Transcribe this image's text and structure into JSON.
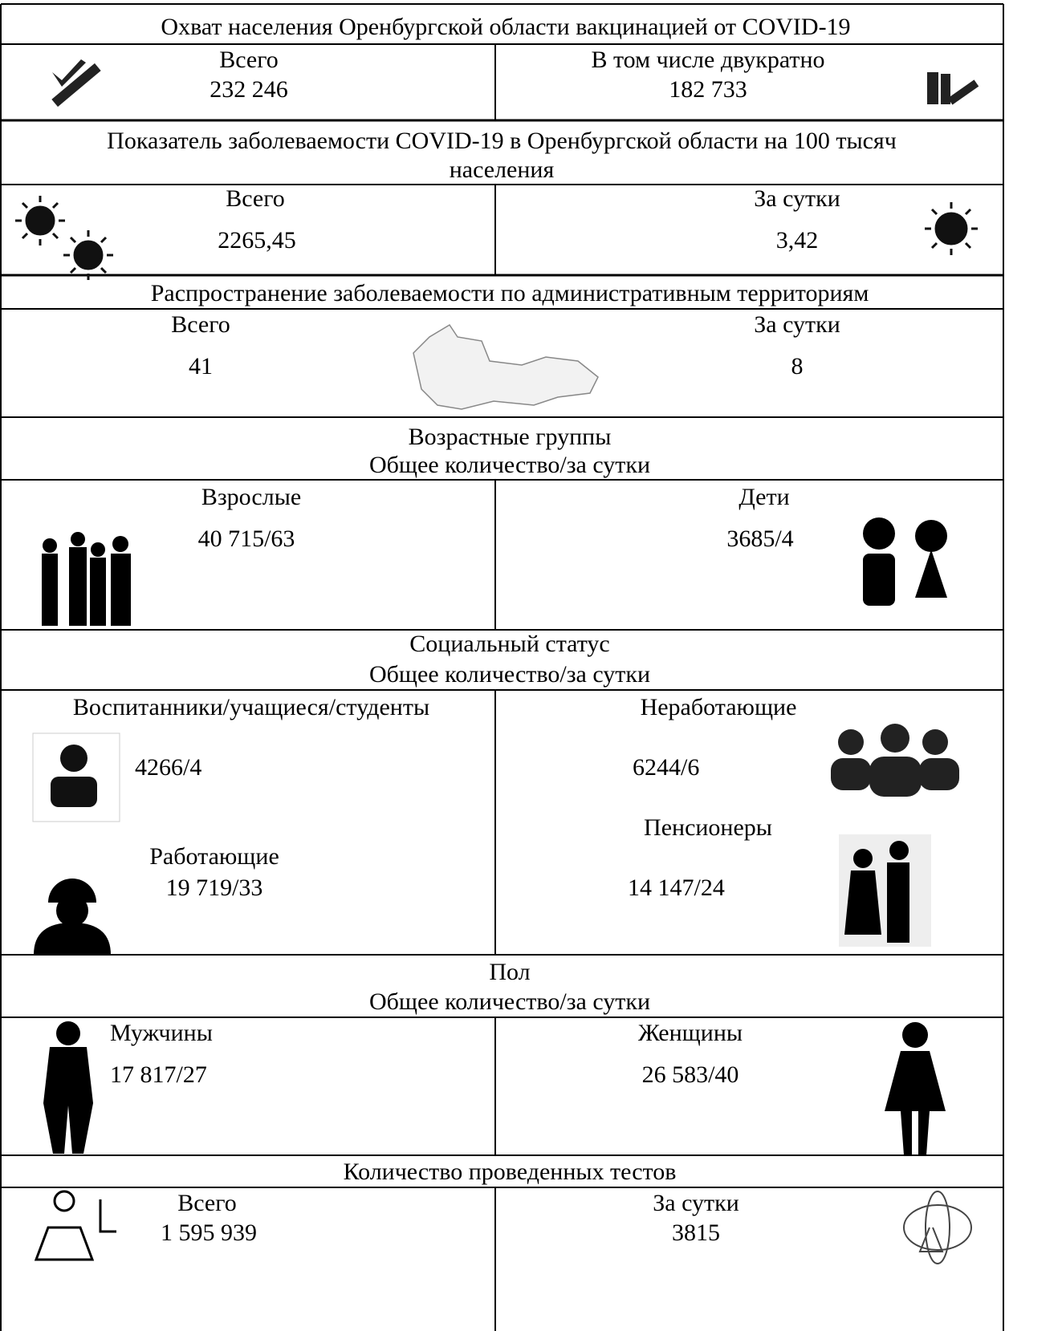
{
  "sections": [
    {
      "title": "Охват населения Оренбургской области вакцинацией от COVID-19",
      "cells": [
        {
          "label": "Всего",
          "value": "232 246"
        },
        {
          "label": "В том числе двукратно",
          "value": "182 733"
        }
      ]
    },
    {
      "title": "Показатель заболеваемости COVID-19 в Оренбургской области на 100 тысяч населения",
      "cells": [
        {
          "label": "Всего",
          "value": "2265,45"
        },
        {
          "label": "За сутки",
          "value": "3,42"
        }
      ]
    },
    {
      "title": "Распространение заболеваемости по административным территориям",
      "cells": [
        {
          "label": "Всего",
          "value": "41"
        },
        {
          "label": "За сутки",
          "value": "8"
        }
      ]
    },
    {
      "title": "Возрастные группы",
      "subtitle": "Общее количество/за сутки",
      "cells": [
        {
          "label": "Взрослые",
          "value": "40 715/63"
        },
        {
          "label": "Дети",
          "value": "3685/4"
        }
      ]
    },
    {
      "title": "Социальный статус",
      "subtitle": "Общее количество/за сутки",
      "cells": [
        {
          "label": "Воспитанники/учащиеся/студенты",
          "value": "4266/4"
        },
        {
          "label": "Работающие",
          "value": "19 719/33"
        },
        {
          "label": "Неработающие",
          "value": "6244/6"
        },
        {
          "label": "Пенсионеры",
          "value": "14 147/24"
        }
      ]
    },
    {
      "title": "Пол",
      "subtitle": "Общее количество/за сутки",
      "cells": [
        {
          "label": "Мужчины",
          "value": "17 817/27"
        },
        {
          "label": "Женщины",
          "value": "26 583/40"
        }
      ]
    },
    {
      "title": "Количество проведенных тестов",
      "cells": [
        {
          "label": "Всего",
          "value": "1 595 939"
        },
        {
          "label": "За сутки",
          "value": "3815"
        }
      ]
    }
  ]
}
